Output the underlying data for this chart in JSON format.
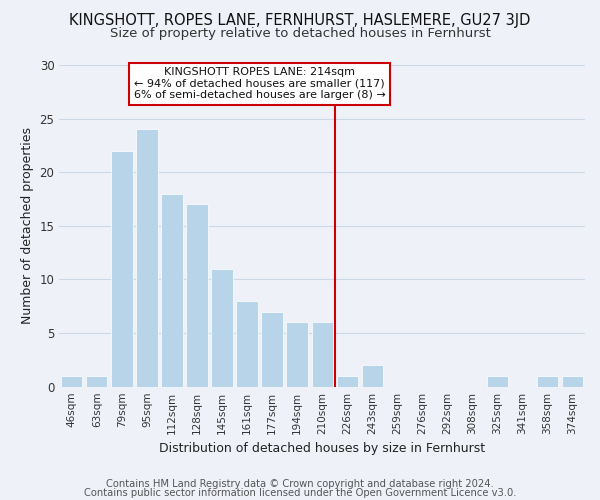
{
  "title": "KINGSHOTT, ROPES LANE, FERNHURST, HASLEMERE, GU27 3JD",
  "subtitle": "Size of property relative to detached houses in Fernhurst",
  "xlabel": "Distribution of detached houses by size in Fernhurst",
  "ylabel": "Number of detached properties",
  "bar_labels": [
    "46sqm",
    "63sqm",
    "79sqm",
    "95sqm",
    "112sqm",
    "128sqm",
    "145sqm",
    "161sqm",
    "177sqm",
    "194sqm",
    "210sqm",
    "226sqm",
    "243sqm",
    "259sqm",
    "276sqm",
    "292sqm",
    "308sqm",
    "325sqm",
    "341sqm",
    "358sqm",
    "374sqm"
  ],
  "bar_values": [
    1,
    1,
    22,
    24,
    18,
    17,
    11,
    8,
    7,
    6,
    6,
    1,
    2,
    0,
    0,
    0,
    0,
    1,
    0,
    1,
    1
  ],
  "bar_color": "#b8d4e8",
  "bar_edge_color": "#ffffff",
  "grid_color": "#ccd8e8",
  "background_color": "#eef2f8",
  "vline_x": 10.5,
  "vline_color": "#cc0000",
  "annotation_line1": "KINGSHOTT ROPES LANE: 214sqm",
  "annotation_line2": "← 94% of detached houses are smaller (117)",
  "annotation_line3": "6% of semi-detached houses are larger (8) →",
  "annotation_box_edge": "#cc0000",
  "ylim": [
    0,
    30
  ],
  "yticks": [
    0,
    5,
    10,
    15,
    20,
    25,
    30
  ],
  "footer_line1": "Contains HM Land Registry data © Crown copyright and database right 2024.",
  "footer_line2": "Contains public sector information licensed under the Open Government Licence v3.0.",
  "title_fontsize": 10.5,
  "subtitle_fontsize": 9.5,
  "axis_label_fontsize": 9,
  "tick_fontsize": 7.5,
  "footer_fontsize": 7.2,
  "annotation_fontsize": 8
}
